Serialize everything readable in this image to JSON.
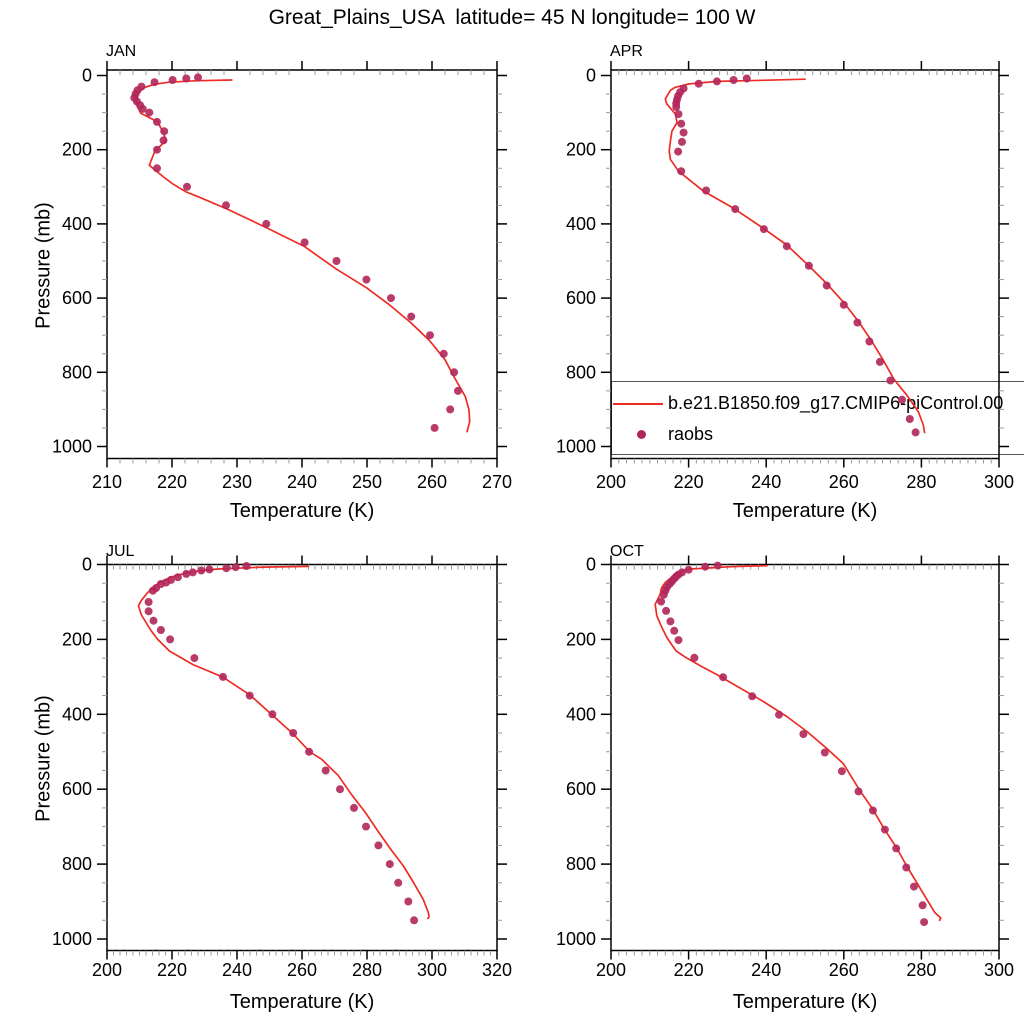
{
  "title": "Great_Plains_USA  latitude= 45 N longitude= 100 W",
  "axis_labels": {
    "x": "Temperature (K)",
    "y": "Pressure (mb)"
  },
  "legend": {
    "model_label": "b.e21.B1850.f09_g17.CMIP6-piControl.00",
    "raobs_label": "raobs"
  },
  "colors": {
    "model_line": "#ee2c24",
    "raobs_dot": "#b1265a",
    "axis": "#000000",
    "minor_tick": "#999999"
  },
  "chart_data": [
    {
      "id": "jan",
      "title": "JAN",
      "type": "line",
      "xlabel": "Temperature (K)",
      "ylabel": "Pressure (mb)",
      "xlim": [
        210,
        270
      ],
      "xticks": [
        210,
        220,
        230,
        240,
        250,
        260,
        270
      ],
      "ylim": [
        1000,
        0
      ],
      "yticks": [
        0,
        200,
        400,
        600,
        800,
        1000
      ],
      "series": [
        {
          "name": "model",
          "type": "line",
          "pressure_mb": [
            12,
            14,
            18,
            24,
            32,
            43,
            52,
            65,
            84,
            102,
            125,
            152,
            174,
            206,
            242,
            275,
            292,
            314,
            328,
            360,
            410,
            460,
            522,
            572,
            619,
            667,
            716,
            766,
            816,
            865,
            901,
            933,
            960
          ],
          "temp_k": [
            229.2,
            224,
            219.5,
            217.2,
            215.8,
            215,
            214.4,
            214.4,
            214.7,
            215.2,
            217.8,
            218.6,
            219.1,
            217.3,
            216.5,
            218.8,
            220.1,
            222.2,
            224.2,
            228.5,
            234.5,
            240.3,
            245.3,
            249.9,
            253.5,
            256.8,
            259.7,
            262,
            263.5,
            265.1,
            265.7,
            265.8,
            265.4
          ]
        },
        {
          "name": "raobs",
          "type": "scatter",
          "pressure_mb": [
            5,
            8,
            12,
            18,
            30,
            40,
            50,
            60,
            70,
            80,
            90,
            100,
            125,
            150,
            175,
            200,
            250,
            300,
            350,
            400,
            450,
            500,
            550,
            600,
            650,
            700,
            750,
            800,
            850,
            900,
            950
          ],
          "temp_k": [
            224,
            222.2,
            220.1,
            217.3,
            215.3,
            214.7,
            214.4,
            214.2,
            214.6,
            215.1,
            215.5,
            216.5,
            217.7,
            218.8,
            218.7,
            217.7,
            217.7,
            222.3,
            228.3,
            234.5,
            240.4,
            245.3,
            249.9,
            253.7,
            256.8,
            259.7,
            261.8,
            263.4,
            264,
            262.8,
            260.4
          ]
        }
      ]
    },
    {
      "id": "apr",
      "title": "APR",
      "type": "line",
      "xlabel": "Temperature (K)",
      "ylabel": "Pressure (mb)",
      "xlim": [
        200,
        300
      ],
      "xticks": [
        200,
        220,
        240,
        260,
        280,
        300
      ],
      "ylim": [
        1000,
        0
      ],
      "yticks": [
        0,
        200,
        400,
        600,
        800,
        1000
      ],
      "series": [
        {
          "name": "model",
          "type": "line",
          "pressure_mb": [
            10,
            13,
            16,
            23,
            32,
            40,
            63,
            77,
            104,
            127,
            150,
            177,
            204,
            226,
            258,
            312,
            358,
            412,
            457,
            512,
            563,
            616,
            663,
            716,
            768,
            820,
            861,
            906,
            942,
            962
          ],
          "temp_k": [
            250,
            239,
            227.3,
            220,
            216.5,
            215.3,
            214,
            214.4,
            216.6,
            217,
            215.7,
            215.3,
            215,
            215.3,
            217.4,
            223.9,
            231.6,
            239.3,
            245.3,
            250.9,
            255.8,
            260.3,
            263.8,
            267.2,
            270.2,
            273,
            276.2,
            279.2,
            280.5,
            280.8
          ]
        },
        {
          "name": "raobs",
          "type": "scatter",
          "pressure_mb": [
            8,
            12,
            16,
            22,
            35,
            45,
            55,
            65,
            75,
            85,
            104,
            130,
            154,
            179,
            205,
            258,
            310,
            360,
            414,
            460,
            513,
            566,
            618,
            666,
            717,
            772,
            822,
            874,
            926,
            962
          ],
          "temp_k": [
            235,
            231.6,
            227.3,
            222.6,
            218.7,
            217.8,
            217.3,
            217,
            216.8,
            216.8,
            217.4,
            218.1,
            218.7,
            218.3,
            217.3,
            218.1,
            224.5,
            232,
            239.4,
            245.3,
            251,
            255.6,
            260,
            263.5,
            266.6,
            269.3,
            272,
            275,
            277,
            278.5
          ]
        }
      ]
    },
    {
      "id": "jul",
      "title": "JUL",
      "type": "line",
      "xlabel": "Temperature (K)",
      "ylabel": "Pressure (mb)",
      "xlim": [
        200,
        320
      ],
      "xticks": [
        200,
        220,
        240,
        260,
        280,
        300,
        320
      ],
      "ylim": [
        1000,
        0
      ],
      "yticks": [
        0,
        200,
        400,
        600,
        800,
        1000
      ],
      "series": [
        {
          "name": "model",
          "type": "line",
          "pressure_mb": [
            5,
            7,
            12,
            20,
            34,
            52,
            75,
            97,
            110,
            133,
            155,
            177,
            200,
            231,
            267,
            301,
            348,
            400,
            451,
            500,
            520,
            563,
            615,
            661,
            710,
            758,
            805,
            849,
            894,
            930,
            941,
            945
          ],
          "temp_k": [
            262,
            248,
            234,
            225.5,
            219.5,
            215.5,
            212.5,
            210.5,
            209.7,
            210.5,
            212,
            213.6,
            215.6,
            219.2,
            226.4,
            235.7,
            243.9,
            250.6,
            257.1,
            262.4,
            266,
            271.1,
            275.3,
            279.4,
            283.2,
            287.1,
            291.2,
            294.3,
            297.3,
            298.9,
            299.1,
            298.7
          ]
        },
        {
          "name": "raobs",
          "type": "scatter",
          "pressure_mb": [
            4,
            7,
            10,
            13,
            16,
            21,
            25,
            34,
            41,
            48,
            52,
            63,
            70,
            100,
            125,
            150,
            175,
            200,
            250,
            300,
            350,
            400,
            450,
            500,
            550,
            600,
            650,
            700,
            750,
            800,
            850,
            900,
            950
          ],
          "temp_k": [
            242.9,
            239.6,
            236.7,
            231.5,
            229,
            226.4,
            224.4,
            221.8,
            219.7,
            218.2,
            216.6,
            215.1,
            214.1,
            212.8,
            212.8,
            214.3,
            216.6,
            219.4,
            226.9,
            235.7,
            243.9,
            250.9,
            257.3,
            262.2,
            267.3,
            271.7,
            276,
            279.7,
            283.5,
            287,
            289.6,
            292.7,
            294.5
          ]
        }
      ]
    },
    {
      "id": "oct",
      "title": "OCT",
      "type": "line",
      "xlabel": "Temperature (K)",
      "ylabel": "Pressure (mb)",
      "xlim": [
        200,
        300
      ],
      "xticks": [
        200,
        220,
        240,
        260,
        280,
        300
      ],
      "ylim": [
        1000,
        0
      ],
      "yticks": [
        0,
        200,
        400,
        600,
        800,
        1000
      ],
      "series": [
        {
          "name": "model",
          "type": "line",
          "pressure_mb": [
            3,
            6,
            12,
            18,
            25,
            35,
            48,
            63,
            79,
            106,
            137,
            168,
            195,
            215,
            231,
            249,
            272,
            294,
            330,
            366,
            406,
            446,
            491,
            532,
            603,
            654,
            706,
            755,
            805,
            849,
            903,
            930,
            944,
            950
          ],
          "temp_k": [
            240.2,
            231,
            220.4,
            217.8,
            216.6,
            215.5,
            214,
            213,
            212.7,
            211.4,
            211.8,
            213.1,
            214.4,
            215.7,
            216.8,
            219.4,
            223.3,
            227.3,
            233.3,
            239.3,
            245.3,
            250.5,
            255.6,
            259.9,
            264.1,
            267.5,
            270.4,
            273.5,
            276.2,
            278.8,
            281.9,
            283.5,
            285,
            284.7
          ]
        },
        {
          "name": "raobs",
          "type": "scatter",
          "pressure_mb": [
            3,
            6,
            14,
            21,
            27,
            32,
            38,
            45,
            52,
            61,
            70,
            81,
            99,
            124,
            152,
            177,
            202,
            249,
            301,
            352,
            401,
            453,
            502,
            552,
            606,
            657,
            708,
            758,
            809,
            860,
            910,
            955
          ],
          "temp_k": [
            227.5,
            224.3,
            220,
            218.3,
            217.4,
            216.8,
            216.3,
            215.7,
            215.1,
            214.4,
            214,
            213.6,
            212.9,
            214.2,
            215.3,
            216.3,
            217.4,
            221.5,
            228.9,
            236.4,
            243.3,
            249.6,
            255.1,
            259.5,
            263.8,
            267.5,
            270.6,
            273.5,
            276.1,
            278.1,
            280.3,
            280.7
          ]
        }
      ]
    }
  ]
}
